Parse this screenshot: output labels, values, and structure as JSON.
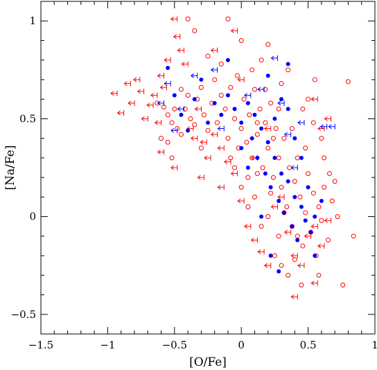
{
  "chart_data": {
    "type": "scatter",
    "title": "",
    "xlabel": "[O/Fe]",
    "ylabel": "[Na/Fe]",
    "xlim": [
      -1.5,
      1.0
    ],
    "ylim": [
      -0.6,
      1.1
    ],
    "xticks": [
      -1.5,
      -1,
      -0.5,
      0,
      0.5,
      1
    ],
    "xtick_labels": [
      "−1.5",
      "−1",
      "−0.5",
      "0",
      "0.5",
      "1"
    ],
    "yticks": [
      -0.5,
      0,
      0.5,
      1
    ],
    "ytick_labels": [
      "−0.5",
      "0",
      "0.5",
      "1"
    ],
    "grid": false,
    "legend": "none",
    "series": [
      {
        "marker": "open-circle",
        "color": "#ff0000",
        "points": [
          [
            -0.63,
            0.58
          ],
          [
            -0.58,
            0.56
          ],
          [
            -0.55,
            0.52
          ],
          [
            -0.52,
            0.48
          ],
          [
            -0.48,
            0.45
          ],
          [
            -0.45,
            0.42
          ],
          [
            -0.42,
            0.55
          ],
          [
            -0.4,
            0.62
          ],
          [
            -0.38,
            0.5
          ],
          [
            -0.35,
            0.47
          ],
          [
            -0.33,
            0.6
          ],
          [
            -0.3,
            0.66
          ],
          [
            -0.28,
            0.52
          ],
          [
            -0.25,
            0.44
          ],
          [
            -0.22,
            0.58
          ],
          [
            -0.2,
            0.7
          ],
          [
            -0.18,
            0.48
          ],
          [
            -0.15,
            0.62
          ],
          [
            -0.12,
            0.55
          ],
          [
            -0.1,
            0.4
          ],
          [
            -0.08,
            0.66
          ],
          [
            -0.05,
            0.5
          ],
          [
            -0.03,
            0.72
          ],
          [
            0.0,
            0.45
          ],
          [
            0.02,
            0.6
          ],
          [
            0.04,
            0.38
          ],
          [
            0.06,
            0.52
          ],
          [
            0.08,
            0.3
          ],
          [
            0.1,
            0.65
          ],
          [
            0.12,
            0.42
          ],
          [
            0.14,
            0.55
          ],
          [
            0.16,
            0.25
          ],
          [
            0.18,
            0.48
          ],
          [
            0.2,
            0.35
          ],
          [
            0.22,
            0.58
          ],
          [
            0.24,
            0.2
          ],
          [
            0.26,
            0.45
          ],
          [
            0.28,
            0.3
          ],
          [
            0.3,
            0.15
          ],
          [
            0.32,
            0.4
          ],
          [
            0.34,
            0.05
          ],
          [
            0.36,
            0.25
          ],
          [
            0.38,
            -0.05
          ],
          [
            0.4,
            0.18
          ],
          [
            0.42,
            -0.1
          ],
          [
            0.44,
            0.1
          ],
          [
            0.46,
            -0.15
          ],
          [
            0.48,
            0.02
          ],
          [
            0.5,
            0.22
          ],
          [
            0.52,
            -0.08
          ],
          [
            0.54,
            0.12
          ],
          [
            0.56,
            -0.2
          ],
          [
            0.58,
            0.05
          ],
          [
            0.6,
            -0.02
          ],
          [
            0.62,
            0.15
          ],
          [
            0.65,
            -0.12
          ],
          [
            0.68,
            0.08
          ],
          [
            0.72,
            0.0
          ],
          [
            0.76,
            -0.35
          ],
          [
            0.8,
            0.69
          ],
          [
            0.84,
            -0.1
          ],
          [
            0.55,
            0.7
          ],
          [
            -0.4,
            1.01
          ],
          [
            -0.1,
            1.01
          ],
          [
            -0.35,
            0.95
          ],
          [
            0.0,
            0.9
          ],
          [
            0.2,
            0.88
          ],
          [
            -0.25,
            0.82
          ],
          [
            0.15,
            0.8
          ],
          [
            0.35,
            0.75
          ],
          [
            -0.15,
            0.78
          ],
          [
            0.3,
            0.68
          ],
          [
            0.1,
            0.1
          ],
          [
            0.2,
            0.0
          ],
          [
            0.25,
            -0.2
          ],
          [
            0.3,
            -0.25
          ],
          [
            0.35,
            -0.3
          ],
          [
            0.4,
            -0.22
          ],
          [
            0.28,
            -0.1
          ],
          [
            0.15,
            -0.05
          ],
          [
            0.05,
            0.05
          ],
          [
            0.0,
            0.15
          ],
          [
            -0.05,
            0.25
          ],
          [
            0.12,
            0.22
          ],
          [
            0.22,
            0.12
          ],
          [
            0.32,
            0.02
          ],
          [
            0.42,
            0.3
          ],
          [
            0.48,
            0.35
          ],
          [
            0.38,
            0.45
          ],
          [
            0.28,
            0.55
          ],
          [
            0.18,
            0.65
          ],
          [
            0.08,
            0.75
          ],
          [
            -0.02,
            0.35
          ],
          [
            0.45,
            -0.35
          ],
          [
            0.58,
            -0.3
          ],
          [
            -0.6,
            0.4
          ],
          [
            -0.55,
            0.38
          ],
          [
            -0.5,
            0.55
          ],
          [
            -0.45,
            0.65
          ],
          [
            -0.52,
            0.3
          ],
          [
            -0.3,
            0.35
          ],
          [
            0.62,
            0.3
          ],
          [
            0.66,
            0.22
          ],
          [
            0.7,
            0.18
          ],
          [
            0.6,
            0.4
          ],
          [
            0.54,
            0.48
          ],
          [
            0.46,
            0.55
          ],
          [
            0.5,
            0.6
          ],
          [
            0.12,
            0.48
          ],
          [
            0.05,
            0.2
          ],
          [
            -0.08,
            0.3
          ],
          [
            0.24,
            0.4
          ]
        ]
      },
      {
        "marker": "left-arrow",
        "color": "#ff0000",
        "points": [
          [
            -0.95,
            0.63
          ],
          [
            -0.9,
            0.53
          ],
          [
            -0.85,
            0.68
          ],
          [
            -0.82,
            0.58
          ],
          [
            -0.78,
            0.7
          ],
          [
            -0.75,
            0.64
          ],
          [
            -0.72,
            0.5
          ],
          [
            -0.68,
            0.57
          ],
          [
            -0.65,
            0.62
          ],
          [
            -0.62,
            0.48
          ],
          [
            -0.6,
            0.72
          ],
          [
            -0.58,
            0.66
          ],
          [
            -0.55,
            0.8
          ],
          [
            -0.5,
            1.01
          ],
          [
            -0.48,
            0.92
          ],
          [
            -0.45,
            0.85
          ],
          [
            -0.42,
            0.78
          ],
          [
            -0.38,
            0.45
          ],
          [
            -0.35,
            0.4
          ],
          [
            -0.32,
            0.55
          ],
          [
            -0.28,
            0.38
          ],
          [
            -0.25,
            0.3
          ],
          [
            -0.2,
            0.42
          ],
          [
            -0.15,
            0.35
          ],
          [
            -0.1,
            0.28
          ],
          [
            -0.05,
            0.22
          ],
          [
            0.0,
            0.08
          ],
          [
            0.05,
            -0.05
          ],
          [
            0.1,
            -0.12
          ],
          [
            0.15,
            -0.18
          ],
          [
            0.2,
            -0.25
          ],
          [
            0.25,
            0.05
          ],
          [
            0.3,
            0.1
          ],
          [
            0.35,
            -0.08
          ],
          [
            0.4,
            -0.2
          ],
          [
            0.45,
            -0.25
          ],
          [
            0.5,
            -0.1
          ],
          [
            0.55,
            -0.05
          ],
          [
            0.6,
            -0.15
          ],
          [
            0.65,
            -0.02
          ],
          [
            0.4,
            -0.41
          ],
          [
            0.55,
            -0.34
          ],
          [
            0.6,
            0.45
          ],
          [
            0.65,
            0.5
          ],
          [
            0.55,
            0.6
          ],
          [
            -0.2,
            0.85
          ],
          [
            -0.05,
            0.95
          ],
          [
            0.0,
            0.7
          ],
          [
            -0.6,
            0.33
          ],
          [
            -0.5,
            0.25
          ],
          [
            -0.3,
            0.2
          ],
          [
            -0.15,
            0.15
          ],
          [
            0.1,
            0.3
          ],
          [
            0.2,
            0.45
          ]
        ]
      },
      {
        "marker": "filled-circle",
        "color": "#0000ff",
        "points": [
          [
            -0.55,
            0.76
          ],
          [
            -0.5,
            0.62
          ],
          [
            -0.45,
            0.52
          ],
          [
            -0.4,
            0.44
          ],
          [
            -0.35,
            0.6
          ],
          [
            -0.3,
            0.7
          ],
          [
            -0.25,
            0.48
          ],
          [
            -0.2,
            0.58
          ],
          [
            -0.15,
            0.52
          ],
          [
            -0.1,
            0.62
          ],
          [
            -0.05,
            0.55
          ],
          [
            0.0,
            0.48
          ],
          [
            0.05,
            0.58
          ],
          [
            0.08,
            0.4
          ],
          [
            0.1,
            0.52
          ],
          [
            0.12,
            0.3
          ],
          [
            0.15,
            0.45
          ],
          [
            0.18,
            0.22
          ],
          [
            0.2,
            0.38
          ],
          [
            0.22,
            0.15
          ],
          [
            0.25,
            0.3
          ],
          [
            0.28,
            0.08
          ],
          [
            0.3,
            0.22
          ],
          [
            0.32,
            0.02
          ],
          [
            0.35,
            0.18
          ],
          [
            0.38,
            -0.05
          ],
          [
            0.4,
            0.1
          ],
          [
            0.42,
            -0.12
          ],
          [
            0.45,
            0.05
          ],
          [
            0.48,
            -0.02
          ],
          [
            0.5,
            0.15
          ],
          [
            0.52,
            -0.08
          ],
          [
            0.55,
            0.0
          ],
          [
            0.6,
            0.08
          ],
          [
            0.28,
            -0.28
          ],
          [
            0.22,
            -0.2
          ],
          [
            0.15,
            0.0
          ],
          [
            0.05,
            0.25
          ],
          [
            0.35,
            0.78
          ],
          [
            0.2,
            0.72
          ],
          [
            0.3,
            0.6
          ],
          [
            0.4,
            0.4
          ],
          [
            -0.1,
            0.8
          ],
          [
            0.0,
            0.35
          ],
          [
            0.25,
            0.5
          ],
          [
            0.45,
            0.3
          ],
          [
            0.55,
            -0.2
          ],
          [
            0.35,
            0.55
          ]
        ]
      },
      {
        "marker": "left-arrow",
        "color": "#0000ff",
        "points": [
          [
            -0.6,
            0.58
          ],
          [
            -0.55,
            0.68
          ],
          [
            -0.5,
            0.44
          ],
          [
            -0.45,
            0.55
          ],
          [
            -0.35,
            0.72
          ],
          [
            -0.2,
            0.75
          ],
          [
            0.15,
            0.65
          ],
          [
            0.25,
            0.81
          ],
          [
            0.3,
            0.58
          ],
          [
            0.35,
            0.42
          ],
          [
            0.45,
            0.48
          ],
          [
            0.62,
            0.46
          ],
          [
            0.68,
            0.46
          ],
          [
            -0.15,
            0.45
          ],
          [
            0.05,
            0.62
          ],
          [
            0.4,
            0.25
          ]
        ]
      }
    ]
  }
}
